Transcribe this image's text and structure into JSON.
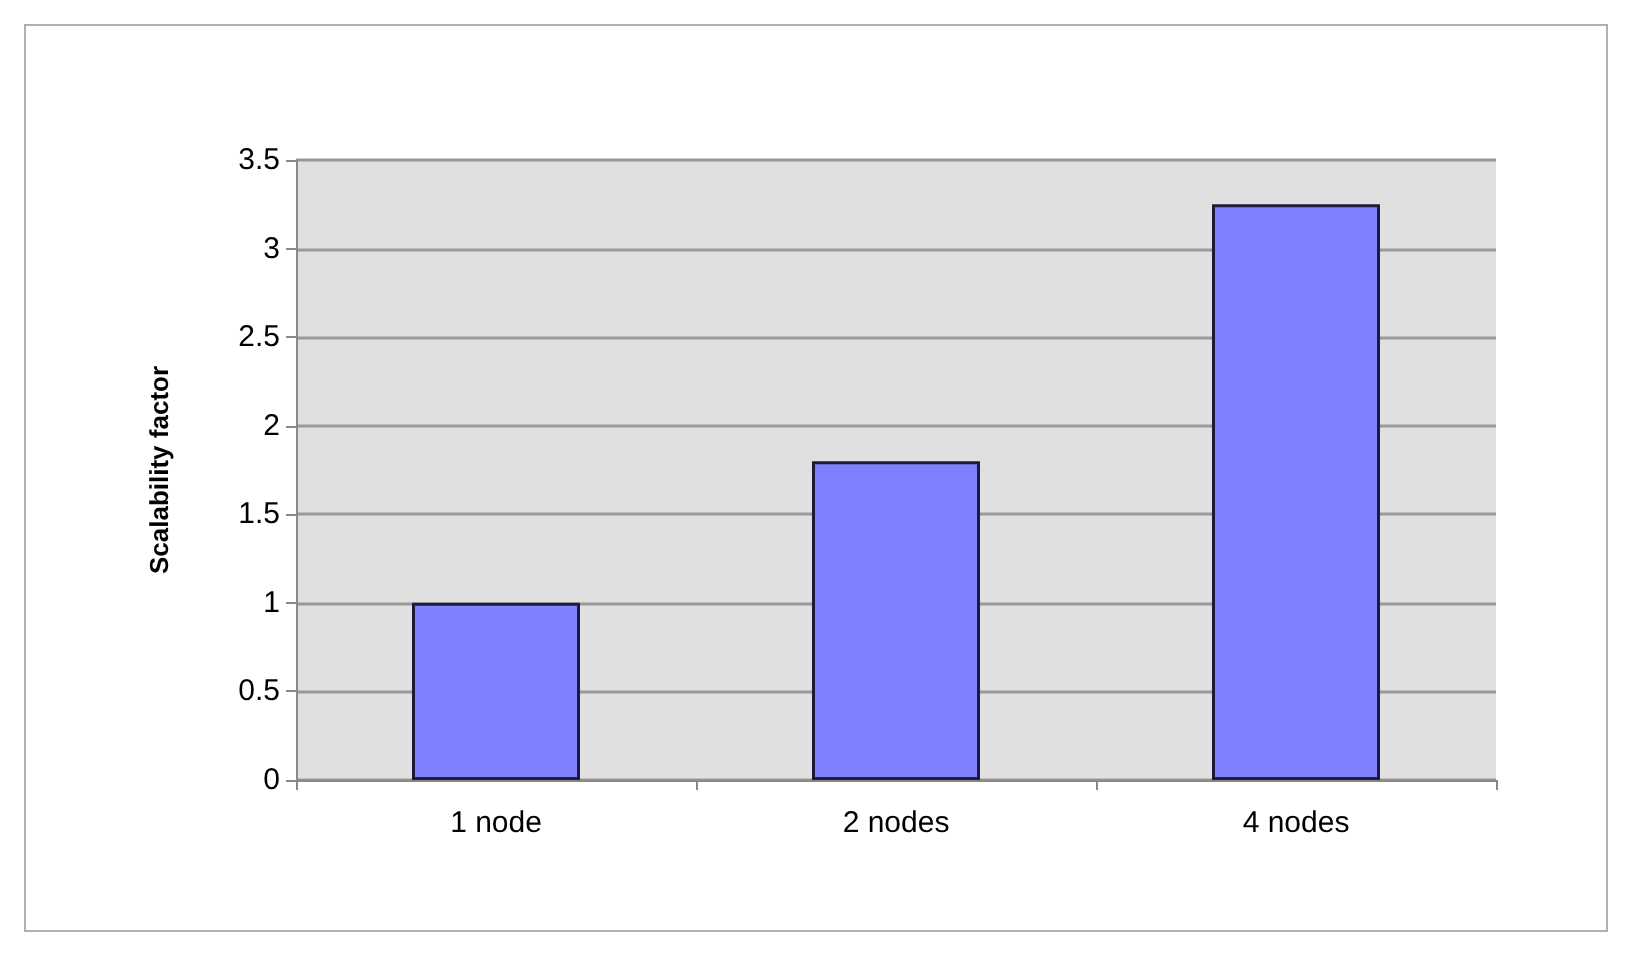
{
  "chart_data": {
    "type": "bar",
    "ylabel": "Scalability factor",
    "categories": [
      "1 node",
      "2 nodes",
      "4 nodes"
    ],
    "values": [
      1,
      1.8,
      3.25
    ],
    "color": "#8080ff",
    "ylim": [
      0,
      3.5
    ],
    "yticks": [
      0,
      0.5,
      1,
      1.5,
      2,
      2.5,
      3,
      3.5
    ],
    "grid": "y"
  }
}
